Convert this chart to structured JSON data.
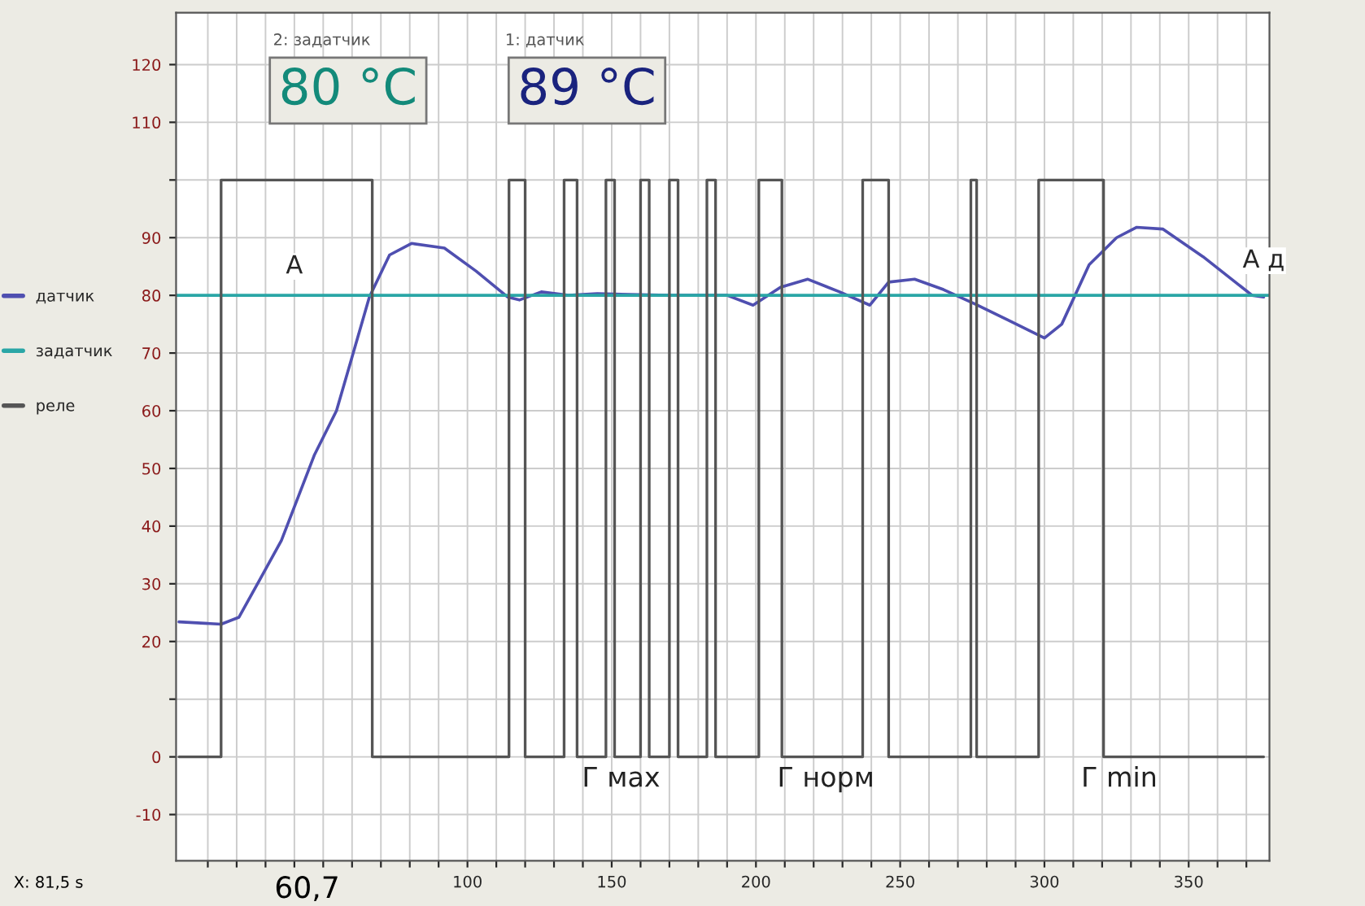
{
  "chart_data": {
    "type": "line",
    "xlim": [
      -1,
      378
    ],
    "ylim": [
      -18,
      129
    ],
    "xticks": [
      {
        "value": 10,
        "label": null
      },
      {
        "value": 20,
        "label": null
      },
      {
        "value": 30,
        "label": null
      },
      {
        "value": 40,
        "label": null
      },
      {
        "value": 50,
        "label": null
      },
      {
        "value": 60,
        "label": null
      },
      {
        "value": 70,
        "label": null
      },
      {
        "value": 80,
        "label": null
      },
      {
        "value": 90,
        "label": null
      },
      100,
      {
        "value": 110,
        "label": null
      },
      {
        "value": 120,
        "label": null
      },
      {
        "value": 130,
        "label": null
      },
      {
        "value": 140,
        "label": null
      },
      150,
      {
        "value": 160,
        "label": null
      },
      {
        "value": 170,
        "label": null
      },
      {
        "value": 180,
        "label": null
      },
      {
        "value": 190,
        "label": null
      },
      200,
      {
        "value": 210,
        "label": null
      },
      {
        "value": 220,
        "label": null
      },
      {
        "value": 230,
        "label": null
      },
      {
        "value": 240,
        "label": null
      },
      250,
      {
        "value": 260,
        "label": null
      },
      {
        "value": 270,
        "label": null
      },
      {
        "value": 280,
        "label": null
      },
      {
        "value": 290,
        "label": null
      },
      300,
      {
        "value": 310,
        "label": null
      },
      {
        "value": 320,
        "label": null
      },
      {
        "value": 330,
        "label": null
      },
      {
        "value": 340,
        "label": null
      },
      350,
      {
        "value": 360,
        "label": null
      },
      {
        "value": 370,
        "label": null
      }
    ],
    "yticks": [
      -10,
      0,
      {
        "value": 10,
        "label": null
      },
      20,
      30,
      40,
      50,
      60,
      70,
      80,
      90,
      {
        "value": 100,
        "label": null
      },
      110,
      120
    ],
    "grid": true,
    "legend": "left",
    "series": [
      {
        "name": "датчик",
        "color": "#4f4fb0",
        "x": [
          0,
          14.6,
          20.8,
          28,
          35.5,
          47,
          54.6,
          60,
          66,
          73,
          80.6,
          92,
          103,
          114,
          118,
          125.6,
          135,
          145,
          170,
          190,
          199,
          208.5,
          218,
          229,
          239.5,
          246,
          255,
          265,
          276,
          287,
          300,
          306,
          315.5,
          325,
          332,
          341,
          355,
          372,
          376
        ],
        "values": [
          23.4,
          23,
          24.2,
          30.7,
          37.5,
          52.4,
          60,
          69.3,
          79.7,
          87,
          89,
          88.2,
          84.2,
          79.7,
          79.2,
          80.6,
          80,
          80.3,
          80,
          80,
          78.3,
          81.4,
          82.8,
          80.6,
          78.3,
          82.3,
          82.8,
          81,
          78.5,
          75.8,
          72.6,
          75,
          85.3,
          90,
          91.8,
          91.5,
          86.7,
          80,
          79.7
        ]
      },
      {
        "name": "задатчик",
        "color": "#2aa6a6",
        "x": [
          -1,
          378
        ],
        "values": [
          80,
          80
        ]
      },
      {
        "name": "реле",
        "type": "step",
        "color": "#555555",
        "x": [
          0,
          14.6,
          67,
          114.4,
          120,
          133.5,
          138,
          148,
          151,
          160,
          163,
          170,
          173,
          183,
          186,
          201,
          209,
          237,
          246,
          274.5,
          276.5,
          298,
          320.5,
          376
        ],
        "values": [
          0,
          100,
          0,
          100,
          0,
          100,
          0,
          100,
          0,
          100,
          0,
          100,
          0,
          100,
          0,
          100,
          0,
          100,
          0,
          100,
          0,
          100,
          0,
          0
        ]
      }
    ],
    "annotations": [
      "2: задатчик",
      "80 °C",
      "1: датчик",
      "89 °C",
      "X: 81,5 s",
      "60,7",
      {
        "text": "A",
        "x": 40,
        "y": 85
      },
      {
        "text": "А д",
        "x": 376,
        "y": 86
      },
      "Г мах",
      "Г норм",
      "Г min"
    ]
  }
}
